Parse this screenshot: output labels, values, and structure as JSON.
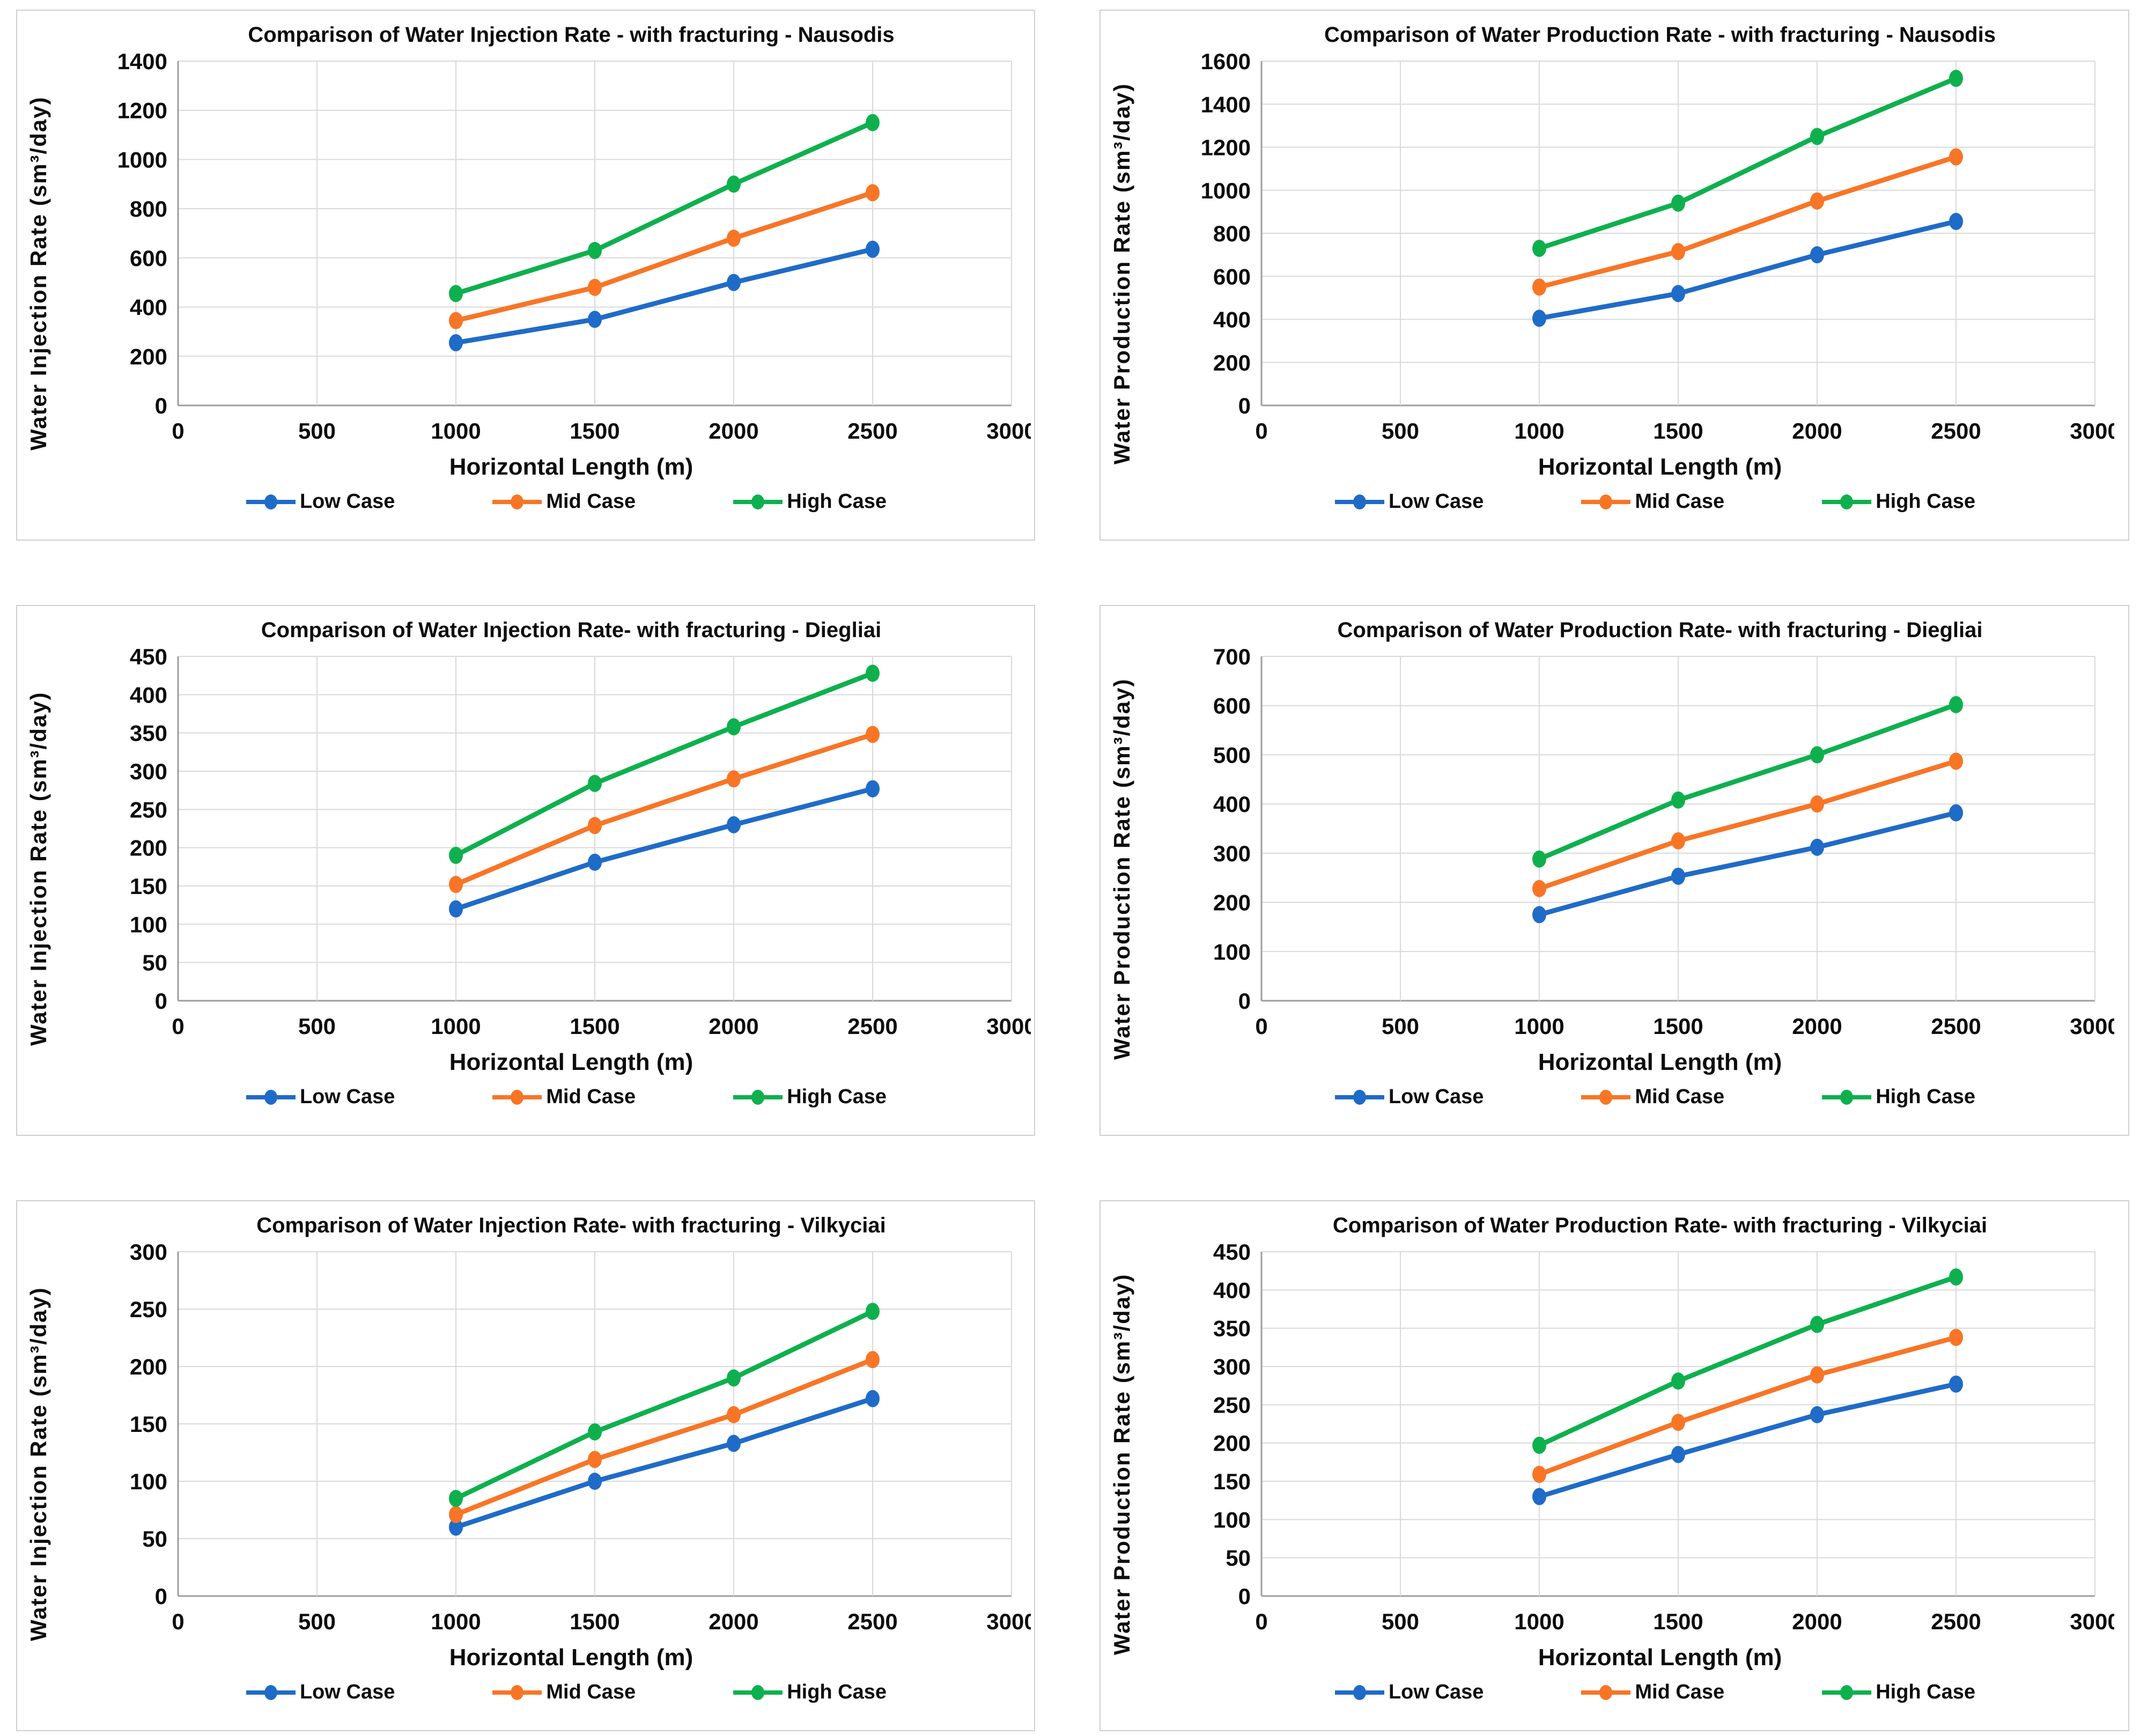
{
  "style": {
    "grid_color": "#d9d9d9",
    "axis_color": "#9e9e9e",
    "text_color": "#0d0d0d",
    "low_case_color": "#1f6bc8",
    "mid_case_color": "#f87526",
    "high_case_color": "#0eb04e"
  },
  "legend_labels": [
    "Low Case",
    "Mid Case",
    "High Case"
  ],
  "chart_data": [
    {
      "type": "line",
      "title": "Comparison of Water Injection Rate - with fracturing - Nausodis",
      "ylabel": "Water Injection Rate (sm³/day)",
      "xlabel": "Horizontal Length (m)",
      "x": [
        1000,
        1500,
        2000,
        2500
      ],
      "xlim": [
        0,
        3000
      ],
      "xstep": 500,
      "ylim": [
        0,
        1400
      ],
      "ystep": 200,
      "grid": true,
      "legend_position": "bottom",
      "series": [
        {
          "name": "Low Case",
          "color": "#1f6bc8",
          "values": [
            255,
            350,
            500,
            635
          ]
        },
        {
          "name": "Mid Case",
          "color": "#f87526",
          "values": [
            345,
            480,
            680,
            865
          ]
        },
        {
          "name": "High Case",
          "color": "#0eb04e",
          "values": [
            455,
            630,
            900,
            1150
          ]
        }
      ]
    },
    {
      "type": "line",
      "title": "Comparison of Water Production Rate - with fracturing - Nausodis",
      "ylabel": "Water Production Rate (sm³/day)",
      "xlabel": "Horizontal Length (m)",
      "x": [
        1000,
        1500,
        2000,
        2500
      ],
      "xlim": [
        0,
        3000
      ],
      "xstep": 500,
      "ylim": [
        0,
        1600
      ],
      "ystep": 200,
      "grid": true,
      "legend_position": "bottom",
      "series": [
        {
          "name": "Low Case",
          "color": "#1f6bc8",
          "values": [
            405,
            520,
            700,
            855
          ]
        },
        {
          "name": "Mid Case",
          "color": "#f87526",
          "values": [
            550,
            715,
            950,
            1155
          ]
        },
        {
          "name": "High Case",
          "color": "#0eb04e",
          "values": [
            730,
            940,
            1250,
            1520
          ]
        }
      ]
    },
    {
      "type": "line",
      "title": "Comparison of Water Injection Rate- with fracturing - Diegliai",
      "ylabel": "Water Injection Rate (sm³/day)",
      "xlabel": "Horizontal Length (m)",
      "x": [
        1000,
        1500,
        2000,
        2500
      ],
      "xlim": [
        0,
        3000
      ],
      "xstep": 500,
      "ylim": [
        0,
        450
      ],
      "ystep": 50,
      "grid": true,
      "legend_position": "bottom",
      "series": [
        {
          "name": "Low Case",
          "color": "#1f6bc8",
          "values": [
            120,
            181,
            230,
            277
          ]
        },
        {
          "name": "Mid Case",
          "color": "#f87526",
          "values": [
            152,
            229,
            290,
            348
          ]
        },
        {
          "name": "High Case",
          "color": "#0eb04e",
          "values": [
            190,
            284,
            358,
            428
          ]
        }
      ]
    },
    {
      "type": "line",
      "title": "Comparison of Water Production Rate- with fracturing - Diegliai",
      "ylabel": "Water Production Rate (sm³/day)",
      "xlabel": "Horizontal Length (m)",
      "x": [
        1000,
        1500,
        2000,
        2500
      ],
      "xlim": [
        0,
        3000
      ],
      "xstep": 500,
      "ylim": [
        0,
        700
      ],
      "ystep": 100,
      "grid": true,
      "legend_position": "bottom",
      "series": [
        {
          "name": "Low Case",
          "color": "#1f6bc8",
          "values": [
            175,
            253,
            312,
            382
          ]
        },
        {
          "name": "Mid Case",
          "color": "#f87526",
          "values": [
            228,
            325,
            400,
            487
          ]
        },
        {
          "name": "High Case",
          "color": "#0eb04e",
          "values": [
            288,
            408,
            500,
            602
          ]
        }
      ]
    },
    {
      "type": "line",
      "title": "Comparison of Water Injection Rate- with fracturing - Vilkyciai",
      "ylabel": "Water Injection Rate (sm³/day)",
      "xlabel": "Horizontal Length (m)",
      "x": [
        1000,
        1500,
        2000,
        2500
      ],
      "xlim": [
        0,
        3000
      ],
      "xstep": 500,
      "ylim": [
        0,
        300
      ],
      "ystep": 50,
      "grid": true,
      "legend_position": "bottom",
      "series": [
        {
          "name": "Low Case",
          "color": "#1f6bc8",
          "values": [
            60,
            100,
            133,
            172
          ]
        },
        {
          "name": "Mid Case",
          "color": "#f87526",
          "values": [
            71,
            119,
            158,
            206
          ]
        },
        {
          "name": "High Case",
          "color": "#0eb04e",
          "values": [
            85,
            143,
            190,
            248
          ]
        }
      ]
    },
    {
      "type": "line",
      "title": "Comparison of Water Production Rate- with fracturing - Vilkyciai",
      "ylabel": "Water Production Rate (sm³/day)",
      "xlabel": "Horizontal Length (m)",
      "x": [
        1000,
        1500,
        2000,
        2500
      ],
      "xlim": [
        0,
        3000
      ],
      "xstep": 500,
      "ylim": [
        0,
        450
      ],
      "ystep": 50,
      "grid": true,
      "legend_position": "bottom",
      "series": [
        {
          "name": "Low Case",
          "color": "#1f6bc8",
          "values": [
            130,
            185,
            237,
            277
          ]
        },
        {
          "name": "Mid Case",
          "color": "#f87526",
          "values": [
            159,
            227,
            289,
            338
          ]
        },
        {
          "name": "High Case",
          "color": "#0eb04e",
          "values": [
            197,
            281,
            355,
            417
          ]
        }
      ]
    }
  ]
}
